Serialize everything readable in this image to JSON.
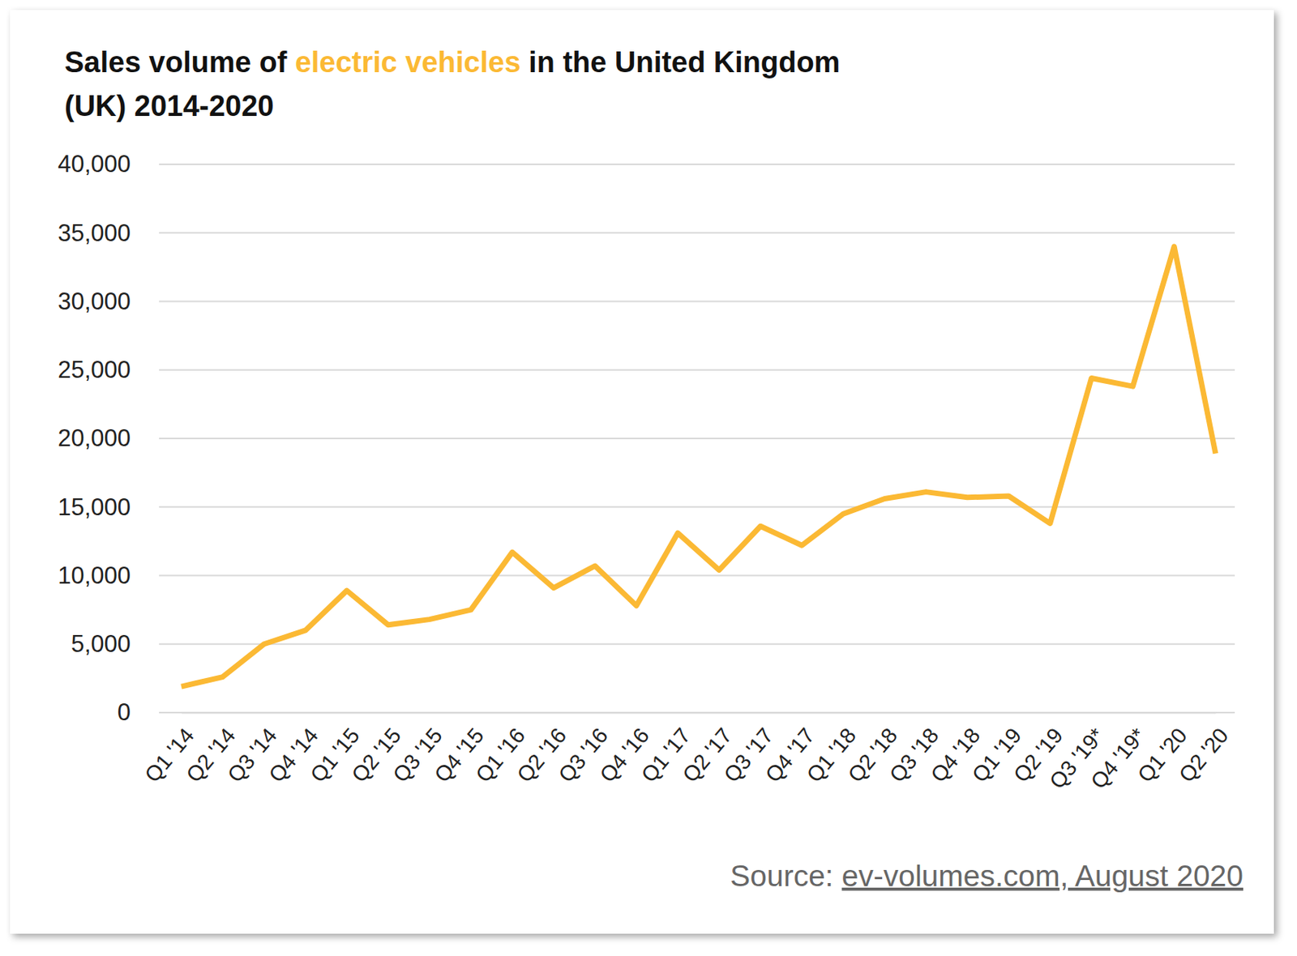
{
  "chart_data": {
    "type": "line",
    "title": [
      "Sales volume of ",
      "electric vehicles",
      " in the United Kingdom",
      "(UK) 2014-2020"
    ],
    "source": [
      "Source: ",
      "ev-volumes.com, August 2020"
    ],
    "categories": [
      "Q1 '14",
      "Q2 '14",
      "Q3 '14",
      "Q4 '14",
      "Q1 '15",
      "Q2 '15",
      "Q3 '15",
      "Q4 '15",
      "Q1 '16",
      "Q2 '16",
      "Q3 '16",
      "Q4 '16",
      "Q1 '17",
      "Q2 '17",
      "Q3 '17",
      "Q4 '17",
      "Q1 '18",
      "Q2 '18",
      "Q3 '18",
      "Q4 '18",
      "Q1 '19",
      "Q2 '19",
      "Q3 '19*",
      "Q4 '19*",
      "Q1 '20",
      "Q2 '20"
    ],
    "values": [
      1900,
      2600,
      5000,
      6000,
      8900,
      6400,
      6800,
      7500,
      11700,
      9100,
      10700,
      7800,
      13100,
      10400,
      13600,
      12200,
      14500,
      15600,
      16100,
      15700,
      15800,
      13800,
      24400,
      23800,
      34000,
      18900
    ],
    "color": "#fbb934",
    "ylim": [
      0,
      40000
    ],
    "yticks": [
      0,
      {
        "value": 5000,
        "label": "5,000"
      },
      {
        "value": 10000,
        "label": "10,000"
      },
      {
        "value": 15000,
        "label": "15,000"
      },
      {
        "value": 20000,
        "label": "20,000"
      },
      {
        "value": 25000,
        "label": "25,000"
      },
      {
        "value": 30000,
        "label": "30,000"
      },
      {
        "value": 35000,
        "label": "35,000"
      },
      {
        "value": 40000,
        "label": "40,000"
      }
    ],
    "grid": true
  }
}
